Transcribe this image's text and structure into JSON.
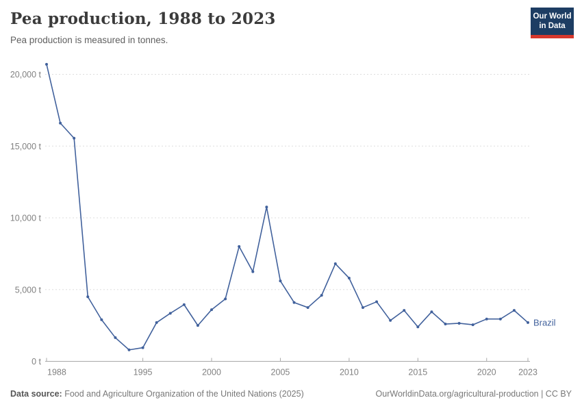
{
  "header": {
    "title": "Pea production, 1988 to 2023",
    "subtitle": "Pea production is measured in tonnes."
  },
  "logo": {
    "line1": "Our World",
    "line2": "in Data",
    "bg_color": "#1d3d63",
    "accent_color": "#d7382d"
  },
  "chart_data": {
    "type": "line",
    "title": "Pea production, 1988 to 2023",
    "unit": "tonnes",
    "grid": true,
    "legend_position": "end-of-line-label",
    "xlim": [
      1988,
      2023
    ],
    "ylim": [
      0,
      20000
    ],
    "x_ticks": [
      1988,
      1995,
      2000,
      2005,
      2010,
      2015,
      2020,
      2023
    ],
    "y_ticks": [
      {
        "value": 0,
        "label": "0 t"
      },
      {
        "value": 5000,
        "label": "5,000 t"
      },
      {
        "value": 10000,
        "label": "10,000 t"
      },
      {
        "value": 15000,
        "label": "15,000 t"
      },
      {
        "value": 20000,
        "label": "20,000 t"
      }
    ],
    "series": [
      {
        "name": "Brazil",
        "x": [
          1988,
          1989,
          1990,
          1991,
          1992,
          1993,
          1994,
          1995,
          1996,
          1997,
          1998,
          1999,
          2000,
          2001,
          2002,
          2003,
          2004,
          2005,
          2006,
          2007,
          2008,
          2009,
          2010,
          2011,
          2012,
          2013,
          2014,
          2015,
          2016,
          2017,
          2018,
          2019,
          2020,
          2021,
          2022,
          2023
        ],
        "values": [
          20700,
          16600,
          15550,
          4500,
          2900,
          1650,
          800,
          950,
          2700,
          3350,
          3950,
          2500,
          3600,
          4350,
          8000,
          6250,
          10750,
          5600,
          4100,
          3750,
          4600,
          6800,
          5800,
          3750,
          4150,
          2850,
          3550,
          2400,
          3450,
          2600,
          2650,
          2550,
          2950,
          2950,
          3550,
          2700
        ]
      }
    ],
    "colors": {
      "line": "#41619c",
      "grid": "#dddddd",
      "axis": "#a8a8a8"
    }
  },
  "footer": {
    "source_label": "Data source:",
    "source_text": "Food and Agriculture Organization of the United Nations (2025)",
    "link_text": "OurWorldinData.org/agricultural-production | CC BY"
  }
}
